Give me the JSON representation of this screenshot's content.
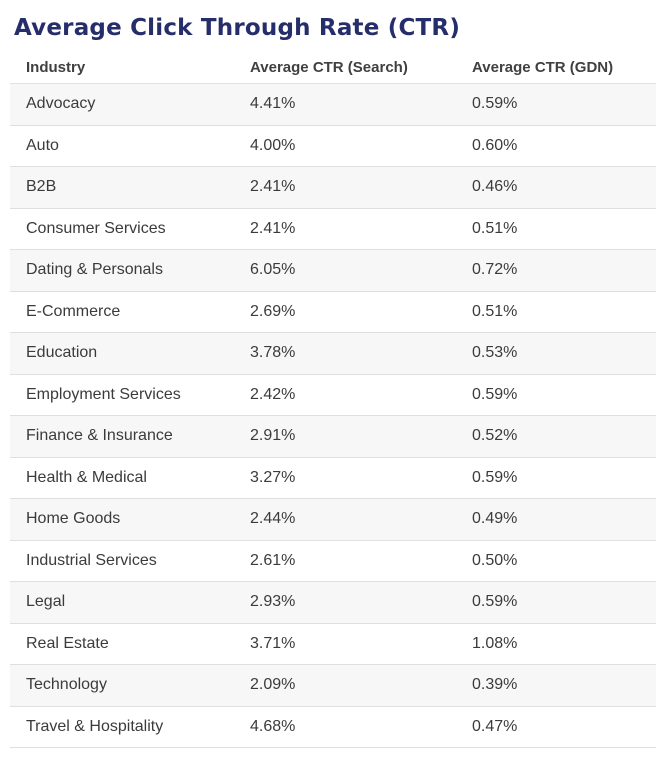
{
  "page": {
    "title": "Average Click Through Rate (CTR)"
  },
  "colors": {
    "title_navy": "#252e6b",
    "row_alt_gray": "#f7f7f7",
    "row_border": "#dfdfdf",
    "header_text": "#404040",
    "body_text": "#3b3b3b"
  },
  "table": {
    "columns": [
      "Industry",
      "Average CTR (Search)",
      "Average CTR (GDN)"
    ],
    "rows": [
      {
        "industry": "Advocacy",
        "search": "4.41%",
        "gdn": "0.59%"
      },
      {
        "industry": "Auto",
        "search": "4.00%",
        "gdn": "0.60%"
      },
      {
        "industry": "B2B",
        "search": "2.41%",
        "gdn": "0.46%"
      },
      {
        "industry": "Consumer Services",
        "search": "2.41%",
        "gdn": "0.51%"
      },
      {
        "industry": "Dating & Personals",
        "search": "6.05%",
        "gdn": "0.72%"
      },
      {
        "industry": "E-Commerce",
        "search": "2.69%",
        "gdn": "0.51%"
      },
      {
        "industry": "Education",
        "search": "3.78%",
        "gdn": "0.53%"
      },
      {
        "industry": "Employment Services",
        "search": "2.42%",
        "gdn": "0.59%"
      },
      {
        "industry": "Finance & Insurance",
        "search": "2.91%",
        "gdn": "0.52%"
      },
      {
        "industry": "Health & Medical",
        "search": "3.27%",
        "gdn": "0.59%"
      },
      {
        "industry": "Home Goods",
        "search": "2.44%",
        "gdn": "0.49%"
      },
      {
        "industry": "Industrial Services",
        "search": "2.61%",
        "gdn": "0.50%"
      },
      {
        "industry": "Legal",
        "search": "2.93%",
        "gdn": "0.59%"
      },
      {
        "industry": "Real Estate",
        "search": "3.71%",
        "gdn": "1.08%"
      },
      {
        "industry": "Technology",
        "search": "2.09%",
        "gdn": "0.39%"
      },
      {
        "industry": "Travel & Hospitality",
        "search": "4.68%",
        "gdn": "0.47%"
      }
    ]
  },
  "chart_data": {
    "type": "table",
    "title": "Average Click Through Rate (CTR)",
    "columns": [
      "Industry",
      "Average CTR (Search)",
      "Average CTR (GDN)"
    ],
    "categories": [
      "Advocacy",
      "Auto",
      "B2B",
      "Consumer Services",
      "Dating & Personals",
      "E-Commerce",
      "Education",
      "Employment Services",
      "Finance & Insurance",
      "Health & Medical",
      "Home Goods",
      "Industrial Services",
      "Legal",
      "Real Estate",
      "Technology",
      "Travel & Hospitality"
    ],
    "series": [
      {
        "name": "Average CTR (Search)",
        "unit": "%",
        "values": [
          4.41,
          4.0,
          2.41,
          2.41,
          6.05,
          2.69,
          3.78,
          2.42,
          2.91,
          3.27,
          2.44,
          2.61,
          2.93,
          3.71,
          2.09,
          4.68
        ]
      },
      {
        "name": "Average CTR (GDN)",
        "unit": "%",
        "values": [
          0.59,
          0.6,
          0.46,
          0.51,
          0.72,
          0.51,
          0.53,
          0.59,
          0.52,
          0.59,
          0.49,
          0.5,
          0.59,
          1.08,
          0.39,
          0.47
        ]
      }
    ],
    "layout": {
      "striped_rows": true,
      "first_data_row_shaded": true,
      "grid": "horizontal-row-borders"
    }
  }
}
